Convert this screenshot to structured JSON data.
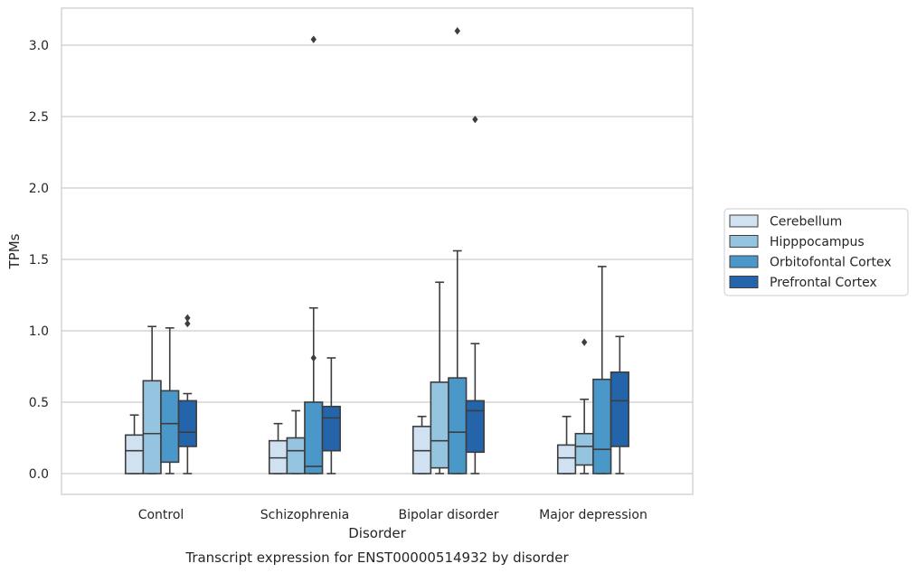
{
  "chart_data": {
    "type": "box",
    "xlabel": "Disorder",
    "ylabel": "TPMs",
    "caption": "Transcript expression for ENST00000514932 by disorder",
    "ylim": [
      -0.15,
      3.25
    ],
    "yticks": [
      "0.0",
      "0.5",
      "1.0",
      "1.5",
      "2.0",
      "2.5",
      "3.0"
    ],
    "ytick_values": [
      0,
      0.5,
      1.0,
      1.5,
      2.0,
      2.5,
      3.0
    ],
    "grid": "horizontal",
    "legend_position": "right",
    "categories": [
      "Control",
      "Schizophrenia",
      "Bipolar disorder",
      "Major depression"
    ],
    "series": [
      {
        "name": "Cerebellum",
        "color": "#d0e1f2",
        "boxes": [
          {
            "min": 0,
            "q1": 0,
            "median": 0.16,
            "q3": 0.27,
            "max": 0.41,
            "outliers": []
          },
          {
            "min": 0,
            "q1": 0,
            "median": 0.11,
            "q3": 0.23,
            "max": 0.35,
            "outliers": []
          },
          {
            "min": 0,
            "q1": 0,
            "median": 0.16,
            "q3": 0.33,
            "max": 0.4,
            "outliers": []
          },
          {
            "min": 0,
            "q1": 0,
            "median": 0.11,
            "q3": 0.2,
            "max": 0.4,
            "outliers": []
          }
        ]
      },
      {
        "name": "Hipppocampus",
        "color": "#94c4df",
        "boxes": [
          {
            "min": 0,
            "q1": 0,
            "median": 0.28,
            "q3": 0.65,
            "max": 1.03,
            "outliers": []
          },
          {
            "min": 0,
            "q1": 0,
            "median": 0.16,
            "q3": 0.25,
            "max": 0.44,
            "outliers": []
          },
          {
            "min": 0,
            "q1": 0.04,
            "median": 0.23,
            "q3": 0.64,
            "max": 1.34,
            "outliers": []
          },
          {
            "min": 0,
            "q1": 0.06,
            "median": 0.19,
            "q3": 0.28,
            "max": 0.52,
            "outliers": [
              0.92
            ]
          }
        ]
      },
      {
        "name": "Orbitofontal Cortex",
        "color": "#4a98c9",
        "boxes": [
          {
            "min": 0,
            "q1": 0.08,
            "median": 0.35,
            "q3": 0.58,
            "max": 1.02,
            "outliers": []
          },
          {
            "min": 0,
            "q1": 0,
            "median": 0.05,
            "q3": 0.5,
            "max": 1.16,
            "outliers": [
              0.81,
              3.04
            ]
          },
          {
            "min": 0,
            "q1": 0,
            "median": 0.29,
            "q3": 0.67,
            "max": 1.56,
            "outliers": [
              3.1
            ]
          },
          {
            "min": 0,
            "q1": 0,
            "median": 0.17,
            "q3": 0.66,
            "max": 1.45,
            "outliers": []
          }
        ]
      },
      {
        "name": "Prefrontal Cortex",
        "color": "#2464ab",
        "boxes": [
          {
            "min": 0,
            "q1": 0.19,
            "median": 0.29,
            "q3": 0.51,
            "max": 0.56,
            "outliers": [
              1.05,
              1.09
            ]
          },
          {
            "min": 0,
            "q1": 0.16,
            "median": 0.39,
            "q3": 0.47,
            "max": 0.81,
            "outliers": []
          },
          {
            "min": 0,
            "q1": 0.15,
            "median": 0.44,
            "q3": 0.51,
            "max": 0.91,
            "outliers": [
              2.48
            ]
          },
          {
            "min": 0,
            "q1": 0.19,
            "median": 0.51,
            "q3": 0.71,
            "max": 0.96,
            "outliers": []
          }
        ]
      }
    ]
  }
}
